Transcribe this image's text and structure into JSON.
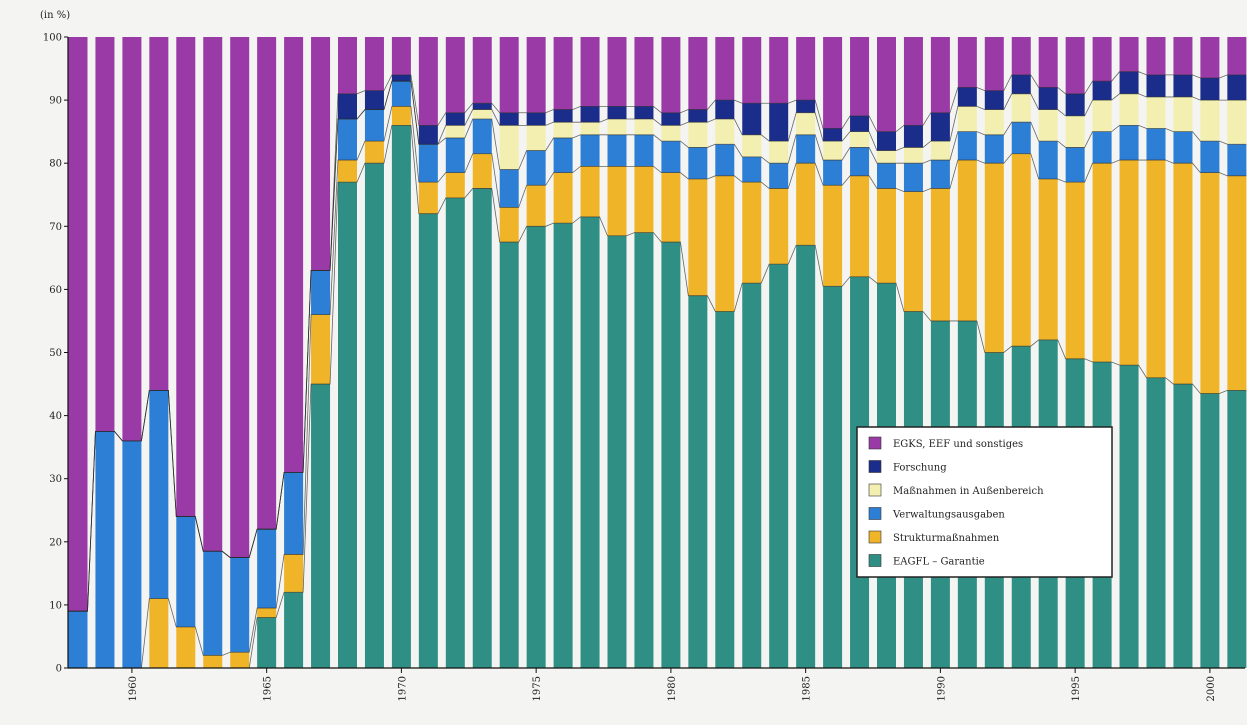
{
  "chart_data": {
    "type": "bar",
    "stacked": true,
    "ylabel": "(in %)",
    "ylim": [
      0,
      100
    ],
    "yticks": [
      0,
      10,
      20,
      30,
      40,
      50,
      60,
      70,
      80,
      90,
      100
    ],
    "grid": false,
    "legend_position": "bottom-right",
    "categories": [
      1958,
      1959,
      1960,
      1961,
      1962,
      1963,
      1964,
      1965,
      1966,
      1967,
      1968,
      1969,
      1970,
      1971,
      1972,
      1973,
      1974,
      1975,
      1976,
      1977,
      1978,
      1979,
      1980,
      1981,
      1982,
      1983,
      1984,
      1985,
      1986,
      1987,
      1988,
      1989,
      1990,
      1991,
      1992,
      1993,
      1994,
      1995,
      1996,
      1997,
      1998,
      1999,
      2000,
      2001
    ],
    "xtick_labels": [
      "1960",
      "1965",
      "1970",
      "1975",
      "1980",
      "1985",
      "1990",
      "1995",
      "2000"
    ],
    "series": [
      {
        "name": "EAGFL – Garantie",
        "color": "#2f8f84",
        "values": [
          0,
          0,
          0,
          0,
          0,
          0,
          0,
          8,
          12,
          45,
          77,
          80,
          86,
          72,
          74.5,
          76,
          67.5,
          70,
          70.5,
          71.5,
          68.5,
          69,
          67.5,
          59,
          56.5,
          61,
          64,
          67,
          60.5,
          62,
          61,
          56.5,
          55,
          55,
          50,
          51,
          52,
          49,
          48.5,
          48,
          46,
          45,
          43.5,
          44
        ]
      },
      {
        "name": "Strukturmaßnahmen",
        "color": "#f0b429",
        "values": [
          0,
          0,
          0,
          11,
          6.5,
          2,
          2.5,
          1.5,
          6,
          11,
          3.5,
          3.5,
          3,
          5,
          4,
          5.5,
          5.5,
          6.5,
          8,
          8,
          11,
          10.5,
          11,
          18.5,
          21.5,
          16,
          12,
          13,
          16,
          16,
          15,
          19,
          21,
          25.5,
          30,
          30.5,
          25.5,
          28,
          31.5,
          32.5,
          34.5,
          35,
          35,
          34
        ]
      },
      {
        "name": "Verwaltungsausgaben",
        "color": "#2d7fd6",
        "values": [
          9,
          37.5,
          36,
          33,
          17.5,
          16.5,
          15,
          12.5,
          13,
          7,
          6.5,
          5,
          4,
          6,
          5.5,
          5.5,
          6,
          5.5,
          5.5,
          5,
          5,
          5,
          5,
          5,
          5,
          4,
          4,
          4.5,
          4,
          4.5,
          4,
          4.5,
          4.5,
          4.5,
          4.5,
          5,
          6,
          5.5,
          5,
          5.5,
          5,
          5,
          5,
          5
        ]
      },
      {
        "name": "Maßnahmen in Außenbereich",
        "color": "#f2efb0",
        "values": [
          0,
          0,
          0,
          0,
          0,
          0,
          0,
          0,
          0,
          0,
          0,
          0,
          0,
          0,
          2,
          1.5,
          7,
          4,
          2.5,
          2,
          2.5,
          2.5,
          2.5,
          4,
          4,
          3.5,
          3.5,
          3.5,
          3,
          2.5,
          2,
          2.5,
          3,
          4,
          4,
          4.5,
          5,
          5,
          5,
          5,
          5,
          5.5,
          6.5,
          7
        ]
      },
      {
        "name": "Forschung",
        "color": "#1a2d8a",
        "values": [
          0,
          0,
          0,
          0,
          0,
          0,
          0,
          0,
          0,
          0,
          4,
          3,
          1,
          3,
          2,
          1,
          2,
          2,
          2,
          2.5,
          2,
          2,
          2,
          2,
          3,
          5,
          6,
          2,
          2,
          2.5,
          3,
          3.5,
          4.5,
          3,
          3,
          3,
          3.5,
          3.5,
          3,
          3.5,
          3.5,
          3.5,
          3.5,
          4
        ]
      },
      {
        "name": "EGKS, EEF und sonstiges",
        "color": "#9a3aa6",
        "values": [
          91,
          62.5,
          64,
          56,
          76,
          81.5,
          82.5,
          78,
          69,
          37,
          9,
          8.5,
          6,
          14,
          12,
          10.5,
          12,
          12,
          11.5,
          11,
          11,
          11,
          12,
          11.5,
          10,
          10.5,
          10.5,
          10,
          14.5,
          12.5,
          15,
          14,
          12,
          8,
          8.5,
          6,
          8,
          9,
          7,
          5.5,
          6,
          6,
          6.5,
          6
        ]
      }
    ]
  },
  "legend_order": [
    "EGKS, EEF und sonstiges",
    "Forschung",
    "Maßnahmen in Außenbereich",
    "Verwaltungsausgaben",
    "Strukturmaßnahmen",
    "EAGFL – Garantie"
  ]
}
